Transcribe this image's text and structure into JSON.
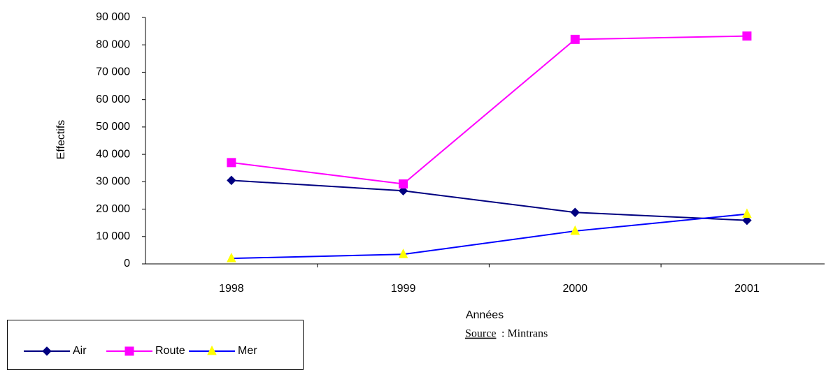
{
  "chart_data": {
    "type": "line",
    "xlabel": "Années",
    "ylabel": "Effectifs",
    "categories": [
      "1998",
      "1999",
      "2000",
      "2001"
    ],
    "series": [
      {
        "name": "Air",
        "color": "#000080",
        "marker": "diamond",
        "values": [
          30500,
          26700,
          18800,
          15900
        ]
      },
      {
        "name": "Route",
        "color": "#ff00ff",
        "marker": "square",
        "values": [
          37000,
          29200,
          82000,
          83200
        ]
      },
      {
        "name": "Mer",
        "color": "#0000ff",
        "marker_color": "#ffff00",
        "marker": "triangle",
        "values": [
          2000,
          3500,
          12000,
          18200
        ]
      }
    ],
    "ylim": [
      0,
      90000
    ],
    "yticks": [
      0,
      {
        "value": 10000,
        "label": "10 000"
      },
      {
        "value": 20000,
        "label": "20 000"
      },
      {
        "value": 30000,
        "label": "30 000"
      },
      {
        "value": 40000,
        "label": "40 000"
      },
      {
        "value": 50000,
        "label": "50 000"
      },
      {
        "value": 60000,
        "label": "60 000"
      },
      {
        "value": 70000,
        "label": "70 000"
      },
      {
        "value": 80000,
        "label": "80 000"
      },
      {
        "value": 90000,
        "label": "90 000"
      }
    ],
    "source_label": "Source",
    "source_text": ": Mintrans",
    "legend": "bottom-left"
  }
}
